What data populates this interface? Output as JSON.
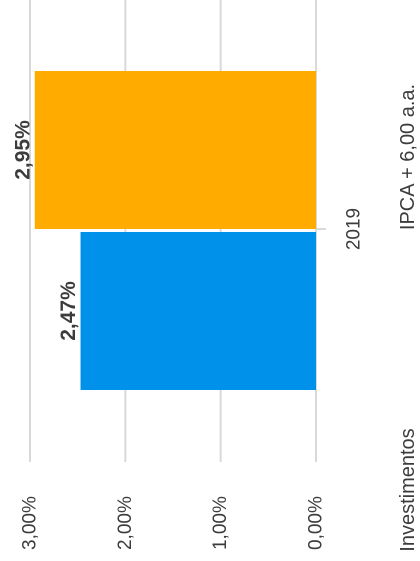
{
  "chart_data": {
    "type": "bar",
    "orientation": "horizontal",
    "categories": [
      "2019"
    ],
    "series": [
      {
        "name": "Investimentos",
        "values": [
          2.47
        ],
        "value_labels": [
          "2,47%"
        ],
        "color": "#0091ea"
      },
      {
        "name": "IPCA + 6,00 a.a.",
        "values": [
          2.95
        ],
        "value_labels": [
          "2,95%"
        ],
        "color": "#ffab00"
      }
    ],
    "value_axis": {
      "range": [
        0,
        3
      ],
      "ticks": [
        0,
        1,
        2,
        3
      ],
      "tick_labels": [
        "0,00%",
        "1,00%",
        "2,00%",
        "3,00%"
      ]
    },
    "grid": true,
    "legend_position": "right",
    "title": "",
    "xlabel": "",
    "ylabel": ""
  }
}
